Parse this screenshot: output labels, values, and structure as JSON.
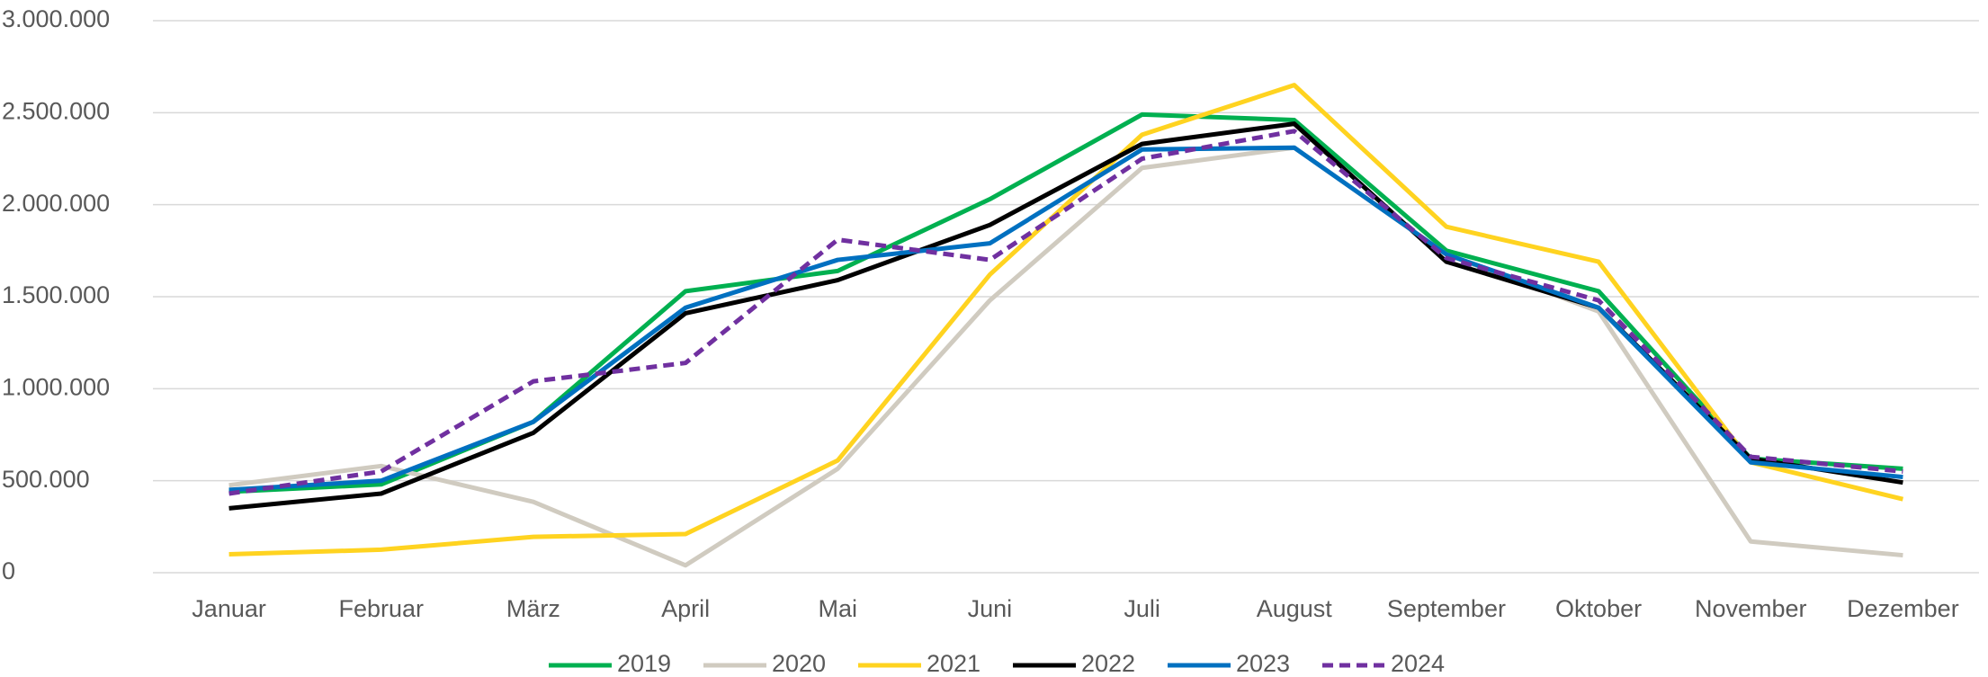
{
  "chart_data": {
    "type": "line",
    "categories": [
      "Januar",
      "Februar",
      "März",
      "April",
      "Mai",
      "Juni",
      "Juli",
      "August",
      "September",
      "Oktober",
      "November",
      "Dezember"
    ],
    "series": [
      {
        "name": "2019",
        "color": "#00b050",
        "values": [
          440000,
          480000,
          820000,
          1530000,
          1640000,
          2030000,
          2490000,
          2460000,
          1750000,
          1530000,
          620000,
          565000
        ]
      },
      {
        "name": "2020",
        "color": "#d0cbc0",
        "values": [
          475000,
          580000,
          385000,
          40000,
          565000,
          1480000,
          2200000,
          2310000,
          1730000,
          1420000,
          170000,
          95000
        ]
      },
      {
        "name": "2021",
        "color": "#ffd320",
        "values": [
          100000,
          125000,
          195000,
          210000,
          610000,
          1620000,
          2380000,
          2650000,
          1880000,
          1690000,
          600000,
          400000
        ]
      },
      {
        "name": "2022",
        "color": "#000000",
        "values": [
          350000,
          430000,
          760000,
          1410000,
          1590000,
          1890000,
          2330000,
          2440000,
          1690000,
          1440000,
          620000,
          490000
        ]
      },
      {
        "name": "2023",
        "color": "#0070c0",
        "values": [
          450000,
          500000,
          820000,
          1440000,
          1700000,
          1790000,
          2300000,
          2310000,
          1730000,
          1440000,
          600000,
          520000
        ]
      },
      {
        "name": "2024",
        "color": "#7030a0",
        "line_style": "dashed",
        "values": [
          430000,
          550000,
          1040000,
          1140000,
          1810000,
          1700000,
          2250000,
          2400000,
          1710000,
          1480000,
          630000,
          550000
        ]
      }
    ],
    "ylim": [
      0,
      3000000
    ],
    "yticks": [
      0,
      {
        "value": 500000,
        "label": "500.000"
      },
      {
        "value": 1000000,
        "label": "1.000.000"
      },
      {
        "value": 1500000,
        "label": "1.500.000"
      },
      {
        "value": 2000000,
        "label": "2.000.000"
      },
      {
        "value": 2500000,
        "label": "2.500.000"
      },
      {
        "value": 3000000,
        "label": "3.000.000"
      }
    ],
    "grid": true,
    "legend": "bottom"
  }
}
